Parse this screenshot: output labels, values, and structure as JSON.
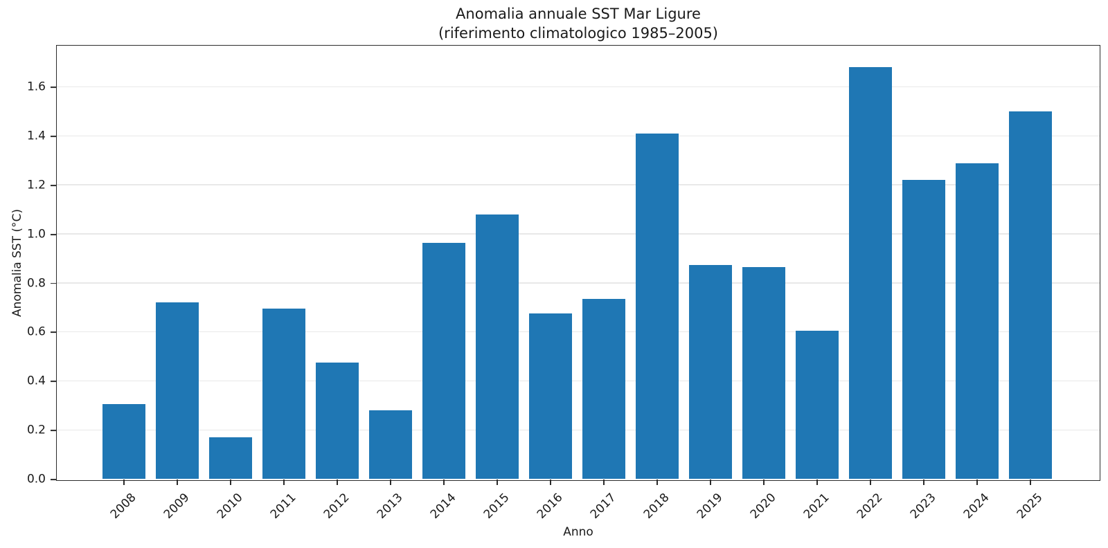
{
  "chart_data": {
    "type": "bar",
    "title": "Anomalia annuale SST Mar Ligure",
    "subtitle": "(riferimento climatologico 1985–2005)",
    "xlabel": "Anno",
    "ylabel": "Anomalia SST (°C)",
    "categories": [
      "2008",
      "2009",
      "2010",
      "2011",
      "2012",
      "2013",
      "2014",
      "2015",
      "2016",
      "2017",
      "2018",
      "2019",
      "2020",
      "2021",
      "2022",
      "2023",
      "2024",
      "2025"
    ],
    "values": [
      0.305,
      0.72,
      0.17,
      0.695,
      0.475,
      0.28,
      0.965,
      1.08,
      0.675,
      0.735,
      1.41,
      0.875,
      0.865,
      0.605,
      1.68,
      1.22,
      1.29,
      1.5
    ],
    "yticks": [
      "0.0",
      "0.2",
      "0.4",
      "0.6",
      "0.8",
      "1.0",
      "1.2",
      "1.4",
      "1.6"
    ],
    "ylim": [
      0,
      1.77
    ],
    "xtick_rotation": 45,
    "grid": "horizontal",
    "legend": "none",
    "bar_color": "#1f77b4",
    "grid_color": "#e8e8e8",
    "spine_color": "#2b2b2b"
  }
}
